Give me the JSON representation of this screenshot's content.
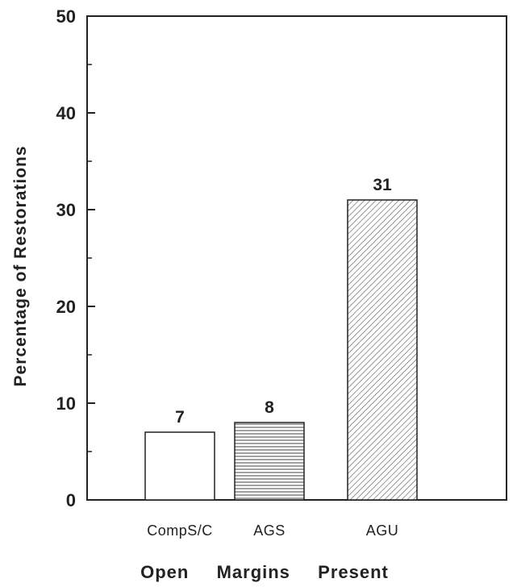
{
  "chart_data": {
    "type": "bar",
    "categories": [
      "CompS/C",
      "AGS",
      "AGU"
    ],
    "values": [
      7,
      8,
      31
    ],
    "data_labels": [
      "7",
      "8",
      "31"
    ],
    "bar_fills": [
      "empty",
      "horizontal-lines",
      "diagonal-lines"
    ],
    "title": "",
    "xlabel": "Open  Margins  Present",
    "ylabel": "Percentage of Restorations",
    "ylim": [
      0,
      50
    ],
    "yticks": [
      0,
      10,
      20,
      30,
      40,
      50
    ],
    "ytick_labels": [
      "0",
      "10",
      "20",
      "30",
      "40",
      "50"
    ],
    "grid": false,
    "legend": "none"
  }
}
